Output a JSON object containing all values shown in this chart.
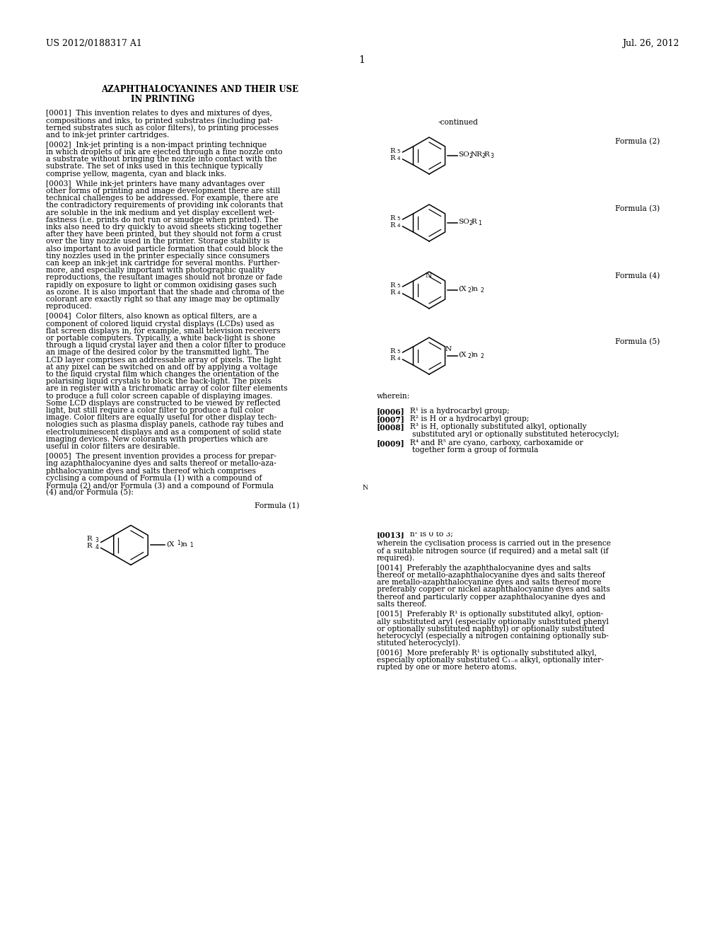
{
  "background_color": "#ffffff",
  "header_left": "US 2012/0188317 A1",
  "header_right": "Jul. 26, 2012",
  "page_number": "1",
  "title_line1": "AZAPHTHALOCYANINES AND THEIR USE",
  "title_line2": "IN PRINTING"
}
